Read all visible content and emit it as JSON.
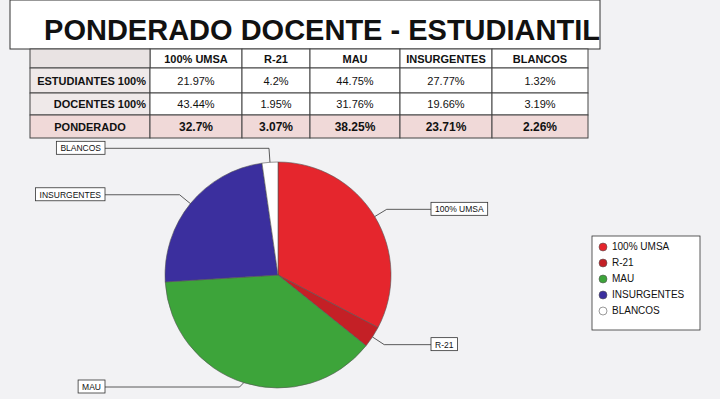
{
  "title": "PONDERADO DOCENTE - ESTUDIANTIL",
  "table": {
    "header": [
      "100% UMSA",
      "R-21",
      "MAU",
      "INSURGENTES",
      "BLANCOS"
    ],
    "rows": [
      {
        "label": "ESTUDIANTES 100%",
        "cells": [
          "21.97%",
          "4.2%",
          "44.75%",
          "27.77%",
          "1.32%"
        ]
      },
      {
        "label": "DOCENTES 100%",
        "cells": [
          "43.44%",
          "1.95%",
          "31.76%",
          "19.66%",
          "3.19%"
        ]
      },
      {
        "label": "PONDERADO",
        "cells": [
          "32.7%",
          "3.07%",
          "38.25%",
          "23.71%",
          "2.26%"
        ]
      }
    ]
  },
  "chart_data": {
    "type": "pie",
    "categories": [
      "100% UMSA",
      "R-21",
      "MAU",
      "INSURGENTES",
      "BLANCOS"
    ],
    "values": [
      32.7,
      3.07,
      38.25,
      23.71,
      2.26
    ],
    "colors": [
      "#e5262d",
      "#c42026",
      "#3da43a",
      "#3b2f9e",
      "#ffffff"
    ],
    "legend": "right"
  }
}
